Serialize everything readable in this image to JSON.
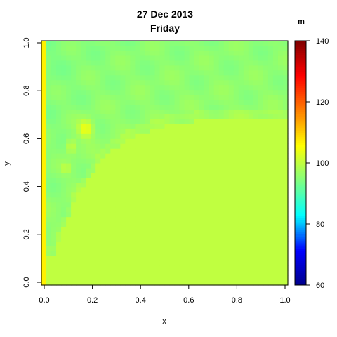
{
  "chart_data": {
    "type": "heatmap",
    "title": "27 Dec 2013",
    "subtitle": "Friday",
    "xlabel": "x",
    "ylabel": "y",
    "colorbar_unit": "m",
    "xlim": [
      0,
      1
    ],
    "ylim": [
      0,
      1
    ],
    "x_ticks": [
      "0.0",
      "0.2",
      "0.4",
      "0.6",
      "0.8",
      "1.0"
    ],
    "y_ticks": [
      "0.0",
      "0.2",
      "0.4",
      "0.6",
      "0.8",
      "1.0"
    ],
    "colorbar_range": [
      60,
      140
    ],
    "colorbar_ticks": [
      "60",
      "80",
      "100",
      "120",
      "140"
    ],
    "colormap": [
      "#00008b",
      "#0000ff",
      "#00ffff",
      "#80ff80",
      "#ffff00",
      "#ff7f00",
      "#ff0000",
      "#7f0000"
    ],
    "grid_size": [
      50,
      50
    ],
    "field_description": "Value near 100 (light green) across the lower-right region below a curved boundary; slightly lower (cyan, ~95-97) in a band across the upper and left parts; a column of higher values (yellow, ~107) along x=0; a few local yellowish highs near x=0.1-0.2, y=0.45-0.65."
  }
}
